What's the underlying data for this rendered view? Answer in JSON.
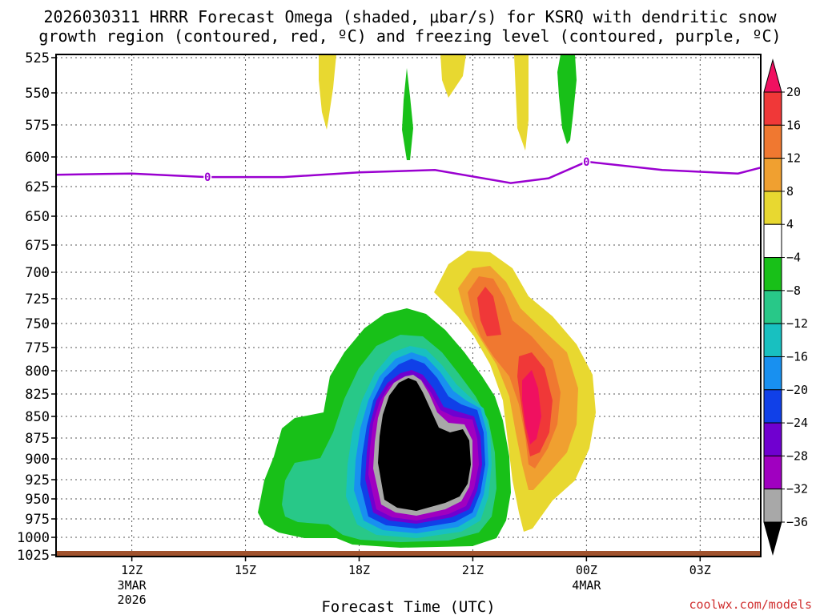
{
  "colors": {
    "freezing_level": "#9a00d0",
    "ground": "#a0522d",
    "credit": "#d03030"
  },
  "chart_data": {
    "type": "contour",
    "title": [
      "2026030311 HRRR Forecast Omega (shaded, μbar/s) for KSRQ with dendritic snow",
      "growth region (contoured, red, ºC) and freezing level (contoured, purple, ºC)"
    ],
    "xlabel": "Forecast Time (UTC)",
    "x_range_hours": [
      -1,
      17.6
    ],
    "x_ticks": [
      {
        "hour": 1,
        "label": "12Z",
        "sub": [
          "3MAR",
          "2026"
        ]
      },
      {
        "hour": 4,
        "label": "15Z",
        "sub": []
      },
      {
        "hour": 7,
        "label": "18Z",
        "sub": []
      },
      {
        "hour": 10,
        "label": "21Z",
        "sub": []
      },
      {
        "hour": 13,
        "label": "00Z",
        "sub": [
          "4MAR"
        ]
      },
      {
        "hour": 16,
        "label": "03Z",
        "sub": []
      }
    ],
    "y_ticks": [
      "525",
      "550",
      "575",
      "600",
      "625",
      "650",
      "675",
      "700",
      "725",
      "750",
      "775",
      "800",
      "825",
      "850",
      "875",
      "900",
      "925",
      "950",
      "975",
      "1000",
      "1025"
    ],
    "colorbar": {
      "labels": [
        "20",
        "16",
        "12",
        "8",
        "4",
        "−4",
        "−8",
        "−12",
        "−16",
        "−20",
        "−24",
        "−28",
        "−32",
        "−36"
      ],
      "colors": [
        "#f01060",
        "#f03838",
        "#f07830",
        "#f0a030",
        "#e8d830",
        "#ffffff",
        "#18c018",
        "#28c888",
        "#18c0c0",
        "#1890f0",
        "#1040e8",
        "#7000d0",
        "#a000c0",
        "#a8a8a8",
        "#000000"
      ]
    },
    "freezing_level_mb": [
      {
        "hour": -1.0,
        "p": 615
      },
      {
        "hour": 1.0,
        "p": 614
      },
      {
        "hour": 3.0,
        "p": 617
      },
      {
        "hour": 5.0,
        "p": 617
      },
      {
        "hour": 7.0,
        "p": 613
      },
      {
        "hour": 9.0,
        "p": 611
      },
      {
        "hour": 11.0,
        "p": 622
      },
      {
        "hour": 12.0,
        "p": 618
      },
      {
        "hour": 13.0,
        "p": 604
      },
      {
        "hour": 15.0,
        "p": 611
      },
      {
        "hour": 17.0,
        "p": 614
      },
      {
        "hour": 17.6,
        "p": 609
      }
    ],
    "freezing_level_labels": [
      {
        "hour": 3.0,
        "p": 617,
        "text": "0"
      },
      {
        "hour": 13.0,
        "p": 604,
        "text": "0"
      }
    ]
  },
  "credit": "coolwx.com/models"
}
